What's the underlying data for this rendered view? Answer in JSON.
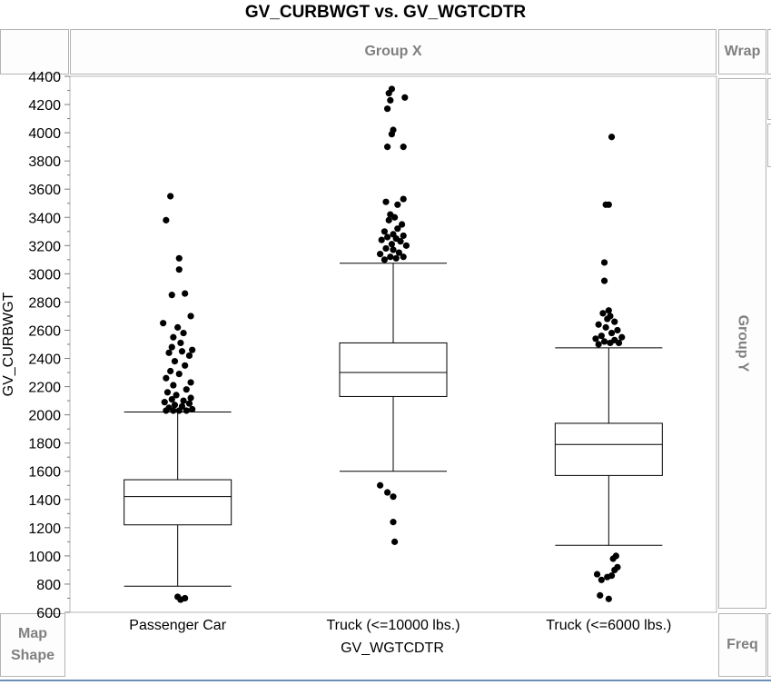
{
  "title": "GV_CURBWGT vs. GV_WGTCDTR",
  "zones": {
    "group_x": "Group X",
    "group_y": "Group Y",
    "wrap": "Wrap",
    "freq": "Freq",
    "map_shape_line1": "Map",
    "map_shape_line2": "Shape"
  },
  "chart_data": {
    "type": "box",
    "title": "GV_CURBWGT vs. GV_WGTCDTR",
    "xlabel": "GV_WGTCDTR",
    "ylabel": "GV_CURBWGT",
    "ylim": [
      600,
      4400
    ],
    "yticks": [
      600,
      800,
      1000,
      1200,
      1400,
      1600,
      1800,
      2000,
      2200,
      2400,
      2600,
      2800,
      3000,
      3200,
      3400,
      3600,
      3800,
      4000,
      4200,
      4400
    ],
    "grid": false,
    "categories": [
      "Passenger Car",
      "Truck (<=10000 lbs.)",
      "Truck (<=6000 lbs.)"
    ],
    "boxes": [
      {
        "category": "Passenger Car",
        "whisker_low": 785,
        "q1": 1220,
        "median": 1420,
        "q3": 1540,
        "whisker_high": 2020,
        "outliers": [
          {
            "y": 710,
            "j": 0.0
          },
          {
            "y": 690,
            "j": 0.2
          },
          {
            "y": 700,
            "j": 0.5
          },
          {
            "y": 2030,
            "j": -0.8
          },
          {
            "y": 2030,
            "j": -0.3
          },
          {
            "y": 2030,
            "j": 0.1
          },
          {
            "y": 2030,
            "j": 0.6
          },
          {
            "y": 2040,
            "j": 1.0
          },
          {
            "y": 2050,
            "j": -0.6
          },
          {
            "y": 2060,
            "j": 0.3
          },
          {
            "y": 2070,
            "j": -0.2
          },
          {
            "y": 2080,
            "j": 0.8
          },
          {
            "y": 2090,
            "j": -0.9
          },
          {
            "y": 2100,
            "j": 0.4
          },
          {
            "y": 2110,
            "j": -0.4
          },
          {
            "y": 2120,
            "j": 0.9
          },
          {
            "y": 2140,
            "j": -0.1
          },
          {
            "y": 2160,
            "j": -0.7
          },
          {
            "y": 2180,
            "j": 0.6
          },
          {
            "y": 2210,
            "j": -0.3
          },
          {
            "y": 2230,
            "j": 0.9
          },
          {
            "y": 2260,
            "j": -0.8
          },
          {
            "y": 2290,
            "j": 0.1
          },
          {
            "y": 2310,
            "j": -0.5
          },
          {
            "y": 2350,
            "j": 0.5
          },
          {
            "y": 2380,
            "j": -0.2
          },
          {
            "y": 2420,
            "j": 0.8
          },
          {
            "y": 2440,
            "j": -0.6
          },
          {
            "y": 2450,
            "j": 0.3
          },
          {
            "y": 2460,
            "j": 1.0
          },
          {
            "y": 2480,
            "j": -0.4
          },
          {
            "y": 2510,
            "j": 0.2
          },
          {
            "y": 2550,
            "j": -0.3
          },
          {
            "y": 2580,
            "j": 0.4
          },
          {
            "y": 2620,
            "j": 0.0
          },
          {
            "y": 2650,
            "j": -1.0
          },
          {
            "y": 2700,
            "j": 0.9
          },
          {
            "y": 2850,
            "j": -0.4
          },
          {
            "y": 2860,
            "j": 0.5
          },
          {
            "y": 3030,
            "j": 0.1
          },
          {
            "y": 3110,
            "j": 0.1
          },
          {
            "y": 3380,
            "j": -0.8
          },
          {
            "y": 3550,
            "j": -0.5
          }
        ]
      },
      {
        "category": "Truck (<=10000 lbs.)",
        "whisker_low": 1600,
        "q1": 2130,
        "median": 2300,
        "q3": 2510,
        "whisker_high": 3075,
        "outliers": [
          {
            "y": 1100,
            "j": 0.1
          },
          {
            "y": 1240,
            "j": 0.0
          },
          {
            "y": 1420,
            "j": 0.0
          },
          {
            "y": 1450,
            "j": -0.4
          },
          {
            "y": 1500,
            "j": -0.9
          },
          {
            "y": 3100,
            "j": -0.6
          },
          {
            "y": 3110,
            "j": 0.2
          },
          {
            "y": 3120,
            "j": -0.2
          },
          {
            "y": 3120,
            "j": 0.7
          },
          {
            "y": 3140,
            "j": -0.9
          },
          {
            "y": 3150,
            "j": 0.4
          },
          {
            "y": 3170,
            "j": 0.0
          },
          {
            "y": 3180,
            "j": -0.5
          },
          {
            "y": 3200,
            "j": 0.9
          },
          {
            "y": 3210,
            "j": -0.1
          },
          {
            "y": 3230,
            "j": 0.5
          },
          {
            "y": 3240,
            "j": -0.8
          },
          {
            "y": 3250,
            "j": 0.2
          },
          {
            "y": 3260,
            "j": -0.4
          },
          {
            "y": 3270,
            "j": 0.7
          },
          {
            "y": 3280,
            "j": 0.0
          },
          {
            "y": 3300,
            "j": -0.6
          },
          {
            "y": 3320,
            "j": 0.3
          },
          {
            "y": 3350,
            "j": 0.6
          },
          {
            "y": 3380,
            "j": -0.3
          },
          {
            "y": 3400,
            "j": 0.1
          },
          {
            "y": 3420,
            "j": -0.2
          },
          {
            "y": 3490,
            "j": 0.3
          },
          {
            "y": 3510,
            "j": -0.5
          },
          {
            "y": 3530,
            "j": 0.7
          },
          {
            "y": 3900,
            "j": -0.4
          },
          {
            "y": 3900,
            "j": 0.7
          },
          {
            "y": 3990,
            "j": -0.1
          },
          {
            "y": 4020,
            "j": 0.0
          },
          {
            "y": 4170,
            "j": -0.4
          },
          {
            "y": 4230,
            "j": -0.2
          },
          {
            "y": 4250,
            "j": 0.8
          },
          {
            "y": 4280,
            "j": -0.3
          },
          {
            "y": 4310,
            "j": -0.1
          }
        ]
      },
      {
        "category": "Truck (<=6000 lbs.)",
        "whisker_low": 1075,
        "q1": 1570,
        "median": 1790,
        "q3": 1940,
        "whisker_high": 2475,
        "outliers": [
          {
            "y": 695,
            "j": 0.0
          },
          {
            "y": 720,
            "j": -0.6
          },
          {
            "y": 830,
            "j": -0.5
          },
          {
            "y": 850,
            "j": -0.1
          },
          {
            "y": 860,
            "j": 0.2
          },
          {
            "y": 870,
            "j": -0.8
          },
          {
            "y": 900,
            "j": 0.4
          },
          {
            "y": 920,
            "j": 0.6
          },
          {
            "y": 980,
            "j": 0.3
          },
          {
            "y": 1000,
            "j": 0.5
          },
          {
            "y": 2500,
            "j": -0.7
          },
          {
            "y": 2510,
            "j": 0.1
          },
          {
            "y": 2510,
            "j": 0.7
          },
          {
            "y": 2520,
            "j": -0.3
          },
          {
            "y": 2530,
            "j": 0.4
          },
          {
            "y": 2540,
            "j": -0.9
          },
          {
            "y": 2550,
            "j": 0.9
          },
          {
            "y": 2560,
            "j": -0.5
          },
          {
            "y": 2580,
            "j": 0.2
          },
          {
            "y": 2600,
            "j": 0.6
          },
          {
            "y": 2620,
            "j": -0.2
          },
          {
            "y": 2640,
            "j": -0.7
          },
          {
            "y": 2660,
            "j": 0.4
          },
          {
            "y": 2680,
            "j": -0.1
          },
          {
            "y": 2700,
            "j": 0.1
          },
          {
            "y": 2720,
            "j": -0.4
          },
          {
            "y": 2740,
            "j": 0.0
          },
          {
            "y": 2950,
            "j": -0.3
          },
          {
            "y": 3080,
            "j": -0.3
          },
          {
            "y": 3490,
            "j": -0.2
          },
          {
            "y": 3490,
            "j": 0.0
          },
          {
            "y": 3970,
            "j": 0.2
          }
        ]
      }
    ]
  }
}
